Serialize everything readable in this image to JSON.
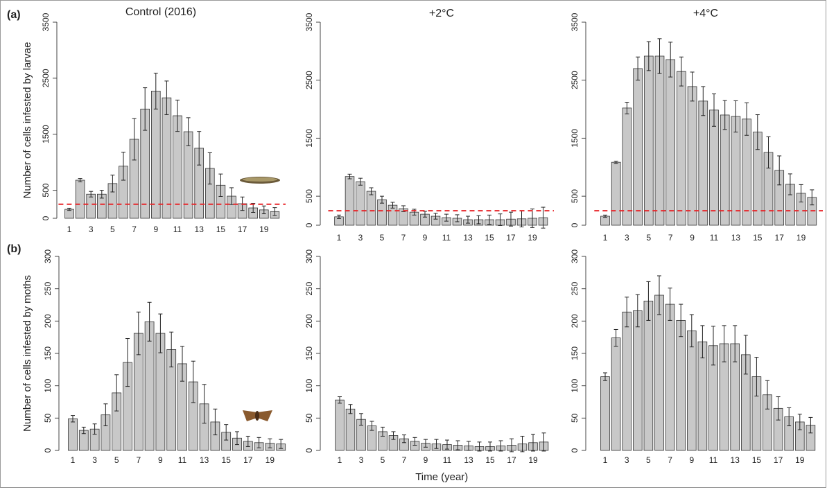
{
  "chart_data": [
    {
      "type": "bar",
      "panel_label": "(a)",
      "title": "Control (2016)",
      "ylabel": "Number of cells infested by larvae",
      "categories": [
        1,
        null,
        3,
        null,
        5,
        null,
        7,
        null,
        9,
        null,
        11,
        null,
        13,
        null,
        15,
        null,
        17,
        null,
        19,
        null
      ],
      "values": [
        160,
        680,
        430,
        430,
        620,
        930,
        1410,
        1950,
        2270,
        2150,
        1830,
        1545,
        1250,
        890,
        590,
        395,
        260,
        185,
        150,
        120
      ],
      "errors": [
        20,
        30,
        50,
        70,
        150,
        250,
        370,
        380,
        320,
        300,
        280,
        250,
        300,
        280,
        200,
        150,
        120,
        80,
        70,
        70
      ],
      "color": "#c8c8c8",
      "ylim": [
        0,
        3500
      ],
      "yticks": [
        0,
        500,
        1500,
        2500,
        3500
      ],
      "hline": 250,
      "hline_color": "#e8262a"
    },
    {
      "type": "bar",
      "title": "+2°C",
      "categories": [
        1,
        null,
        3,
        null,
        5,
        null,
        7,
        null,
        9,
        null,
        11,
        null,
        13,
        null,
        15,
        null,
        17,
        null,
        19,
        null
      ],
      "values": [
        145,
        840,
        750,
        585,
        440,
        345,
        285,
        225,
        190,
        155,
        130,
        120,
        95,
        95,
        95,
        95,
        105,
        110,
        120,
        130
      ],
      "errors": [
        30,
        40,
        60,
        60,
        60,
        50,
        50,
        50,
        50,
        50,
        60,
        60,
        60,
        70,
        80,
        100,
        120,
        140,
        160,
        180
      ],
      "color": "#c8c8c8",
      "ylim": [
        0,
        3500
      ],
      "yticks": [
        0,
        500,
        1500,
        2500,
        3500
      ],
      "hline": 250,
      "hline_color": "#e8262a"
    },
    {
      "type": "bar",
      "title": "+4°C",
      "categories": [
        1,
        null,
        3,
        null,
        5,
        null,
        7,
        null,
        9,
        null,
        11,
        null,
        13,
        null,
        15,
        null,
        17,
        null,
        19,
        null
      ],
      "values": [
        155,
        1085,
        2020,
        2700,
        2915,
        2915,
        2855,
        2650,
        2390,
        2140,
        1985,
        1900,
        1875,
        1830,
        1605,
        1255,
        945,
        705,
        550,
        480
      ],
      "errors": [
        20,
        20,
        100,
        200,
        250,
        300,
        300,
        250,
        250,
        250,
        280,
        250,
        270,
        280,
        300,
        270,
        250,
        180,
        150,
        130
      ],
      "color": "#c8c8c8",
      "ylim": [
        0,
        3500
      ],
      "yticks": [
        0,
        500,
        1500,
        2500,
        3500
      ],
      "hline": 250,
      "hline_color": "#e8262a"
    },
    {
      "type": "bar",
      "panel_label": "(b)",
      "ylabel": "Number of cells infested by moths",
      "categories": [
        1,
        null,
        3,
        null,
        5,
        null,
        7,
        null,
        9,
        null,
        11,
        null,
        13,
        null,
        15,
        null,
        17,
        null,
        19,
        null
      ],
      "values": [
        49,
        31,
        33,
        55,
        89,
        136,
        181,
        199,
        181,
        156,
        134,
        106,
        72,
        44,
        28,
        19,
        14,
        12,
        11,
        10
      ],
      "errors": [
        5,
        5,
        8,
        17,
        28,
        37,
        33,
        30,
        30,
        27,
        27,
        32,
        30,
        20,
        12,
        10,
        8,
        8,
        7,
        7
      ],
      "color": "#c8c8c8",
      "ylim": [
        0,
        300
      ],
      "yticks": [
        0,
        50,
        100,
        150,
        200,
        250,
        300
      ]
    },
    {
      "type": "bar",
      "xlabel": "Time (year)",
      "categories": [
        1,
        null,
        3,
        null,
        5,
        null,
        7,
        null,
        9,
        null,
        11,
        null,
        13,
        null,
        15,
        null,
        17,
        null,
        19,
        null
      ],
      "values": [
        78,
        64,
        48,
        38,
        29,
        23,
        18,
        14,
        11,
        10,
        9,
        8,
        7,
        6,
        6,
        7,
        8,
        10,
        12,
        13
      ],
      "errors": [
        5,
        7,
        9,
        7,
        7,
        6,
        6,
        6,
        6,
        7,
        7,
        7,
        7,
        7,
        7,
        8,
        10,
        12,
        13,
        14
      ],
      "color": "#c8c8c8",
      "ylim": [
        0,
        300
      ],
      "yticks": [
        0,
        50,
        100,
        150,
        200,
        250,
        300
      ]
    },
    {
      "type": "bar",
      "categories": [
        1,
        null,
        3,
        null,
        5,
        null,
        7,
        null,
        9,
        null,
        11,
        null,
        13,
        null,
        15,
        null,
        17,
        null,
        19,
        null
      ],
      "values": [
        114,
        174,
        214,
        216,
        231,
        240,
        226,
        201,
        185,
        168,
        162,
        165,
        165,
        148,
        114,
        86,
        65,
        52,
        44,
        39
      ],
      "errors": [
        6,
        13,
        23,
        25,
        30,
        30,
        25,
        25,
        25,
        25,
        30,
        28,
        28,
        30,
        30,
        22,
        18,
        14,
        12,
        12
      ],
      "color": "#c8c8c8",
      "ylim": [
        0,
        300
      ],
      "yticks": [
        0,
        50,
        100,
        150,
        200,
        250,
        300
      ]
    }
  ]
}
